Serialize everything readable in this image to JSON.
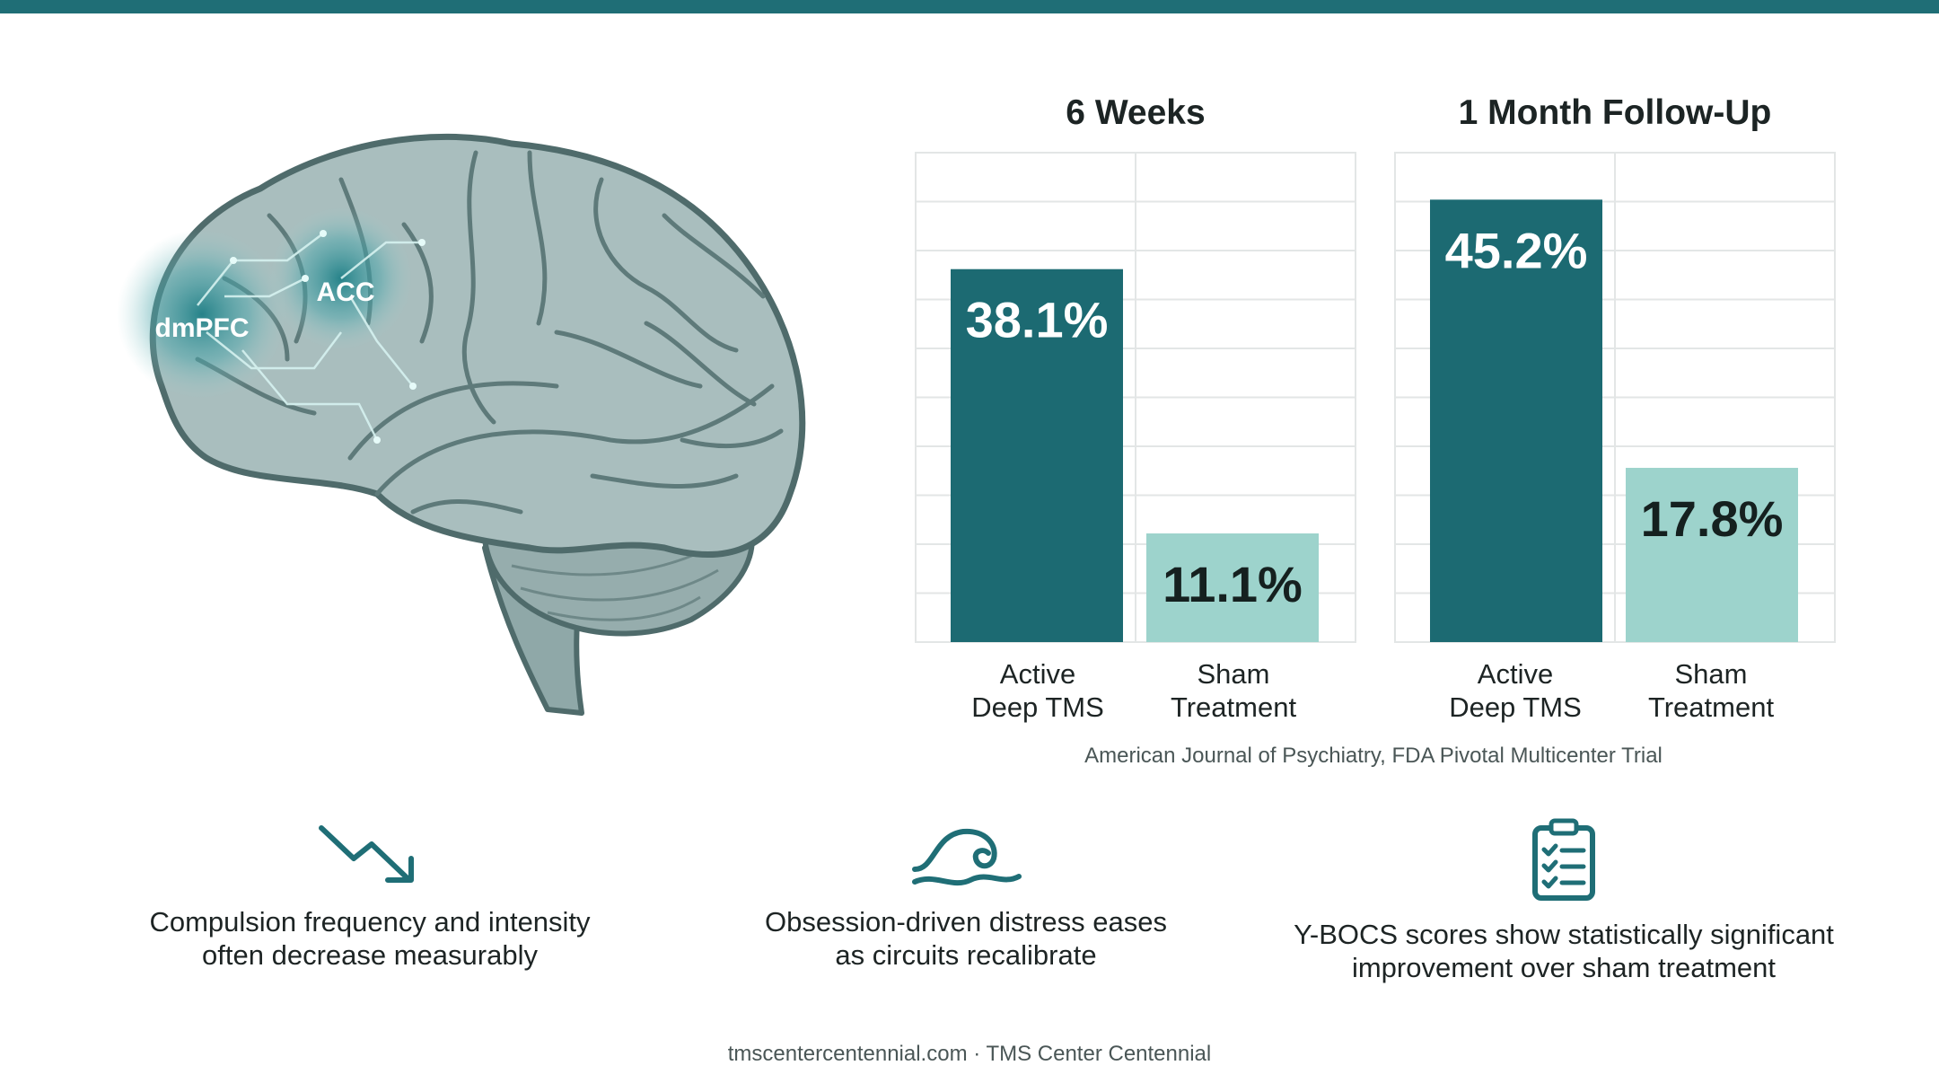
{
  "colors": {
    "active": "#1c6a72",
    "sham": "#9dd3cc",
    "accent": "#1f6e76",
    "grid": "#e3e6e6"
  },
  "brain": {
    "region_labels": [
      "dmPFC",
      "ACC"
    ]
  },
  "chart_data": [
    {
      "type": "bar",
      "title": "6 Weeks",
      "categories": [
        "Active\nDeep TMS",
        "Sham\nTreatment"
      ],
      "values": [
        38.1,
        11.1
      ],
      "value_labels": [
        "38.1%",
        "11.1%"
      ],
      "ylim": [
        0,
        50
      ],
      "grid": true
    },
    {
      "type": "bar",
      "title": "1 Month Follow-Up",
      "categories": [
        "Active\nDeep TMS",
        "Sham\nTreatment"
      ],
      "values": [
        45.2,
        17.8
      ],
      "value_labels": [
        "45.2%",
        "17.8%"
      ],
      "ylim": [
        0,
        50
      ],
      "grid": true
    }
  ],
  "source": "American Journal of Psychiatry, FDA Pivotal Multicenter Trial",
  "benefits": [
    {
      "icon": "trend-down-icon",
      "text": "Compulsion frequency and intensity\noften decrease measurably"
    },
    {
      "icon": "wave-icon",
      "text": "Obsession-driven distress eases\nas circuits recalibrate"
    },
    {
      "icon": "clipboard-checklist-icon",
      "text": "Y-BOCS scores show statistically significant\nimprovement over sham treatment"
    }
  ],
  "footer": "tmscentercentennial.com · TMS Center Centennial"
}
